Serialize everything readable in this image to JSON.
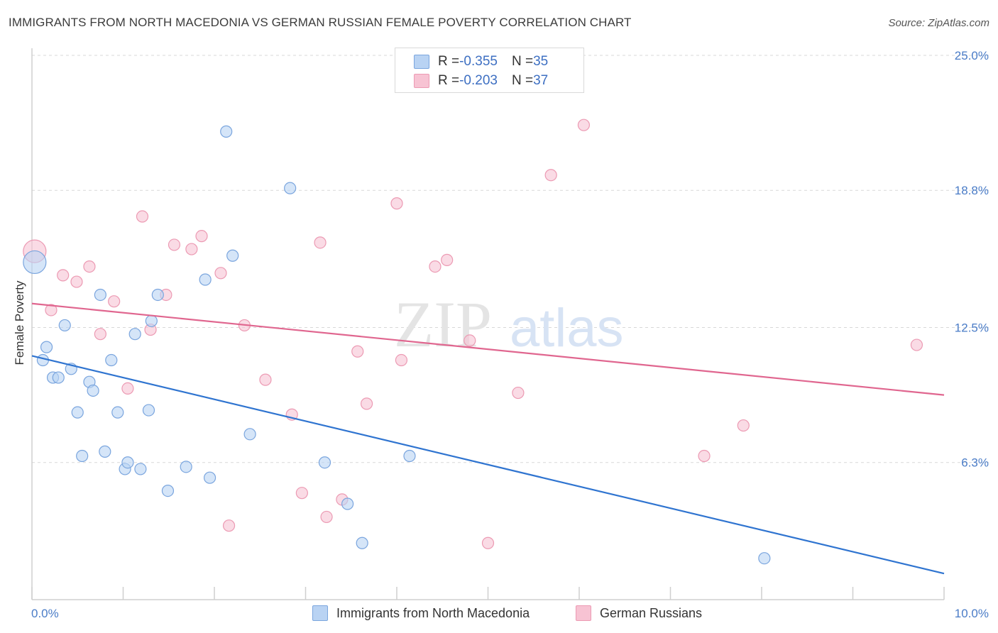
{
  "header": {
    "title": "IMMIGRANTS FROM NORTH MACEDONIA VS GERMAN RUSSIAN FEMALE POVERTY CORRELATION CHART",
    "source": "Source: ZipAtlas.com"
  },
  "legend": {
    "rows": [
      {
        "r_label": "R = ",
        "r_value": "-0.355",
        "n_label": "N = ",
        "n_value": "35"
      },
      {
        "r_label": "R = ",
        "r_value": "-0.203",
        "n_label": "N = ",
        "n_value": "37"
      }
    ]
  },
  "colors": {
    "blue_fill": "#b9d3f3",
    "blue_stroke": "#7aa5de",
    "blue_line": "#2f74d0",
    "pink_fill": "#f7c3d3",
    "pink_stroke": "#ec9ab3",
    "pink_line": "#e0668f",
    "grid": "#d8d8d8",
    "tick_text": "#4a7cc7"
  },
  "watermark": {
    "zip": "ZIP",
    "atlas": "atlas"
  },
  "chart_data": {
    "type": "scatter",
    "title": "IMMIGRANTS FROM NORTH MACEDONIA VS GERMAN RUSSIAN FEMALE POVERTY CORRELATION CHART",
    "xlabel": "",
    "ylabel": "Female Poverty",
    "xlim": [
      0,
      10
    ],
    "ylim": [
      0,
      25
    ],
    "x_tick_labels": [
      "0.0%",
      "10.0%"
    ],
    "y_ticks": [
      6.3,
      12.5,
      18.8,
      25.0
    ],
    "y_tick_labels": [
      "6.3%",
      "12.5%",
      "18.8%",
      "25.0%"
    ],
    "grid": true,
    "legend_position": "top-center",
    "series": [
      {
        "name": "Immigrants from North Macedonia",
        "color": "#7aa5de",
        "points": [
          [
            0.03,
            15.5
          ],
          [
            0.12,
            11.0
          ],
          [
            0.16,
            11.6
          ],
          [
            0.23,
            10.2
          ],
          [
            0.29,
            10.2
          ],
          [
            0.36,
            12.6
          ],
          [
            0.43,
            10.6
          ],
          [
            0.5,
            8.6
          ],
          [
            0.55,
            6.6
          ],
          [
            0.63,
            10.0
          ],
          [
            0.67,
            9.6
          ],
          [
            0.75,
            14.0
          ],
          [
            0.8,
            6.8
          ],
          [
            0.87,
            11.0
          ],
          [
            0.94,
            8.6
          ],
          [
            1.02,
            6.0
          ],
          [
            1.05,
            6.3
          ],
          [
            1.13,
            12.2
          ],
          [
            1.19,
            6.0
          ],
          [
            1.28,
            8.7
          ],
          [
            1.31,
            12.8
          ],
          [
            1.38,
            14.0
          ],
          [
            1.49,
            5.0
          ],
          [
            1.69,
            6.1
          ],
          [
            1.9,
            14.7
          ],
          [
            1.95,
            5.6
          ],
          [
            2.13,
            21.5
          ],
          [
            2.2,
            15.8
          ],
          [
            2.39,
            7.6
          ],
          [
            2.83,
            18.9
          ],
          [
            3.21,
            6.3
          ],
          [
            3.46,
            4.4
          ],
          [
            3.62,
            2.6
          ],
          [
            4.14,
            6.6
          ],
          [
            8.03,
            1.9
          ]
        ],
        "trend": {
          "x": [
            0,
            10
          ],
          "y": [
            11.2,
            1.2
          ]
        }
      },
      {
        "name": "German Russians",
        "color": "#ec9ab3",
        "points": [
          [
            0.03,
            16.0
          ],
          [
            0.21,
            13.3
          ],
          [
            0.34,
            14.9
          ],
          [
            0.49,
            14.6
          ],
          [
            0.63,
            15.3
          ],
          [
            0.75,
            12.2
          ],
          [
            0.9,
            13.7
          ],
          [
            1.05,
            9.7
          ],
          [
            1.21,
            17.6
          ],
          [
            1.3,
            12.4
          ],
          [
            1.47,
            14.0
          ],
          [
            1.56,
            16.3
          ],
          [
            1.75,
            16.1
          ],
          [
            1.86,
            16.7
          ],
          [
            2.07,
            15.0
          ],
          [
            2.16,
            3.4
          ],
          [
            2.33,
            12.6
          ],
          [
            2.56,
            10.1
          ],
          [
            2.85,
            8.5
          ],
          [
            2.96,
            4.9
          ],
          [
            3.16,
            16.4
          ],
          [
            3.23,
            3.8
          ],
          [
            3.4,
            4.6
          ],
          [
            3.57,
            11.4
          ],
          [
            3.67,
            9.0
          ],
          [
            4.0,
            18.2
          ],
          [
            4.05,
            11.0
          ],
          [
            4.42,
            15.3
          ],
          [
            4.55,
            15.6
          ],
          [
            4.8,
            11.9
          ],
          [
            5.0,
            2.6
          ],
          [
            5.33,
            9.5
          ],
          [
            5.69,
            19.5
          ],
          [
            6.05,
            21.8
          ],
          [
            7.37,
            6.6
          ],
          [
            7.8,
            8.0
          ],
          [
            9.7,
            11.7
          ]
        ],
        "trend": {
          "x": [
            0,
            10
          ],
          "y": [
            13.6,
            9.4
          ]
        }
      }
    ]
  }
}
